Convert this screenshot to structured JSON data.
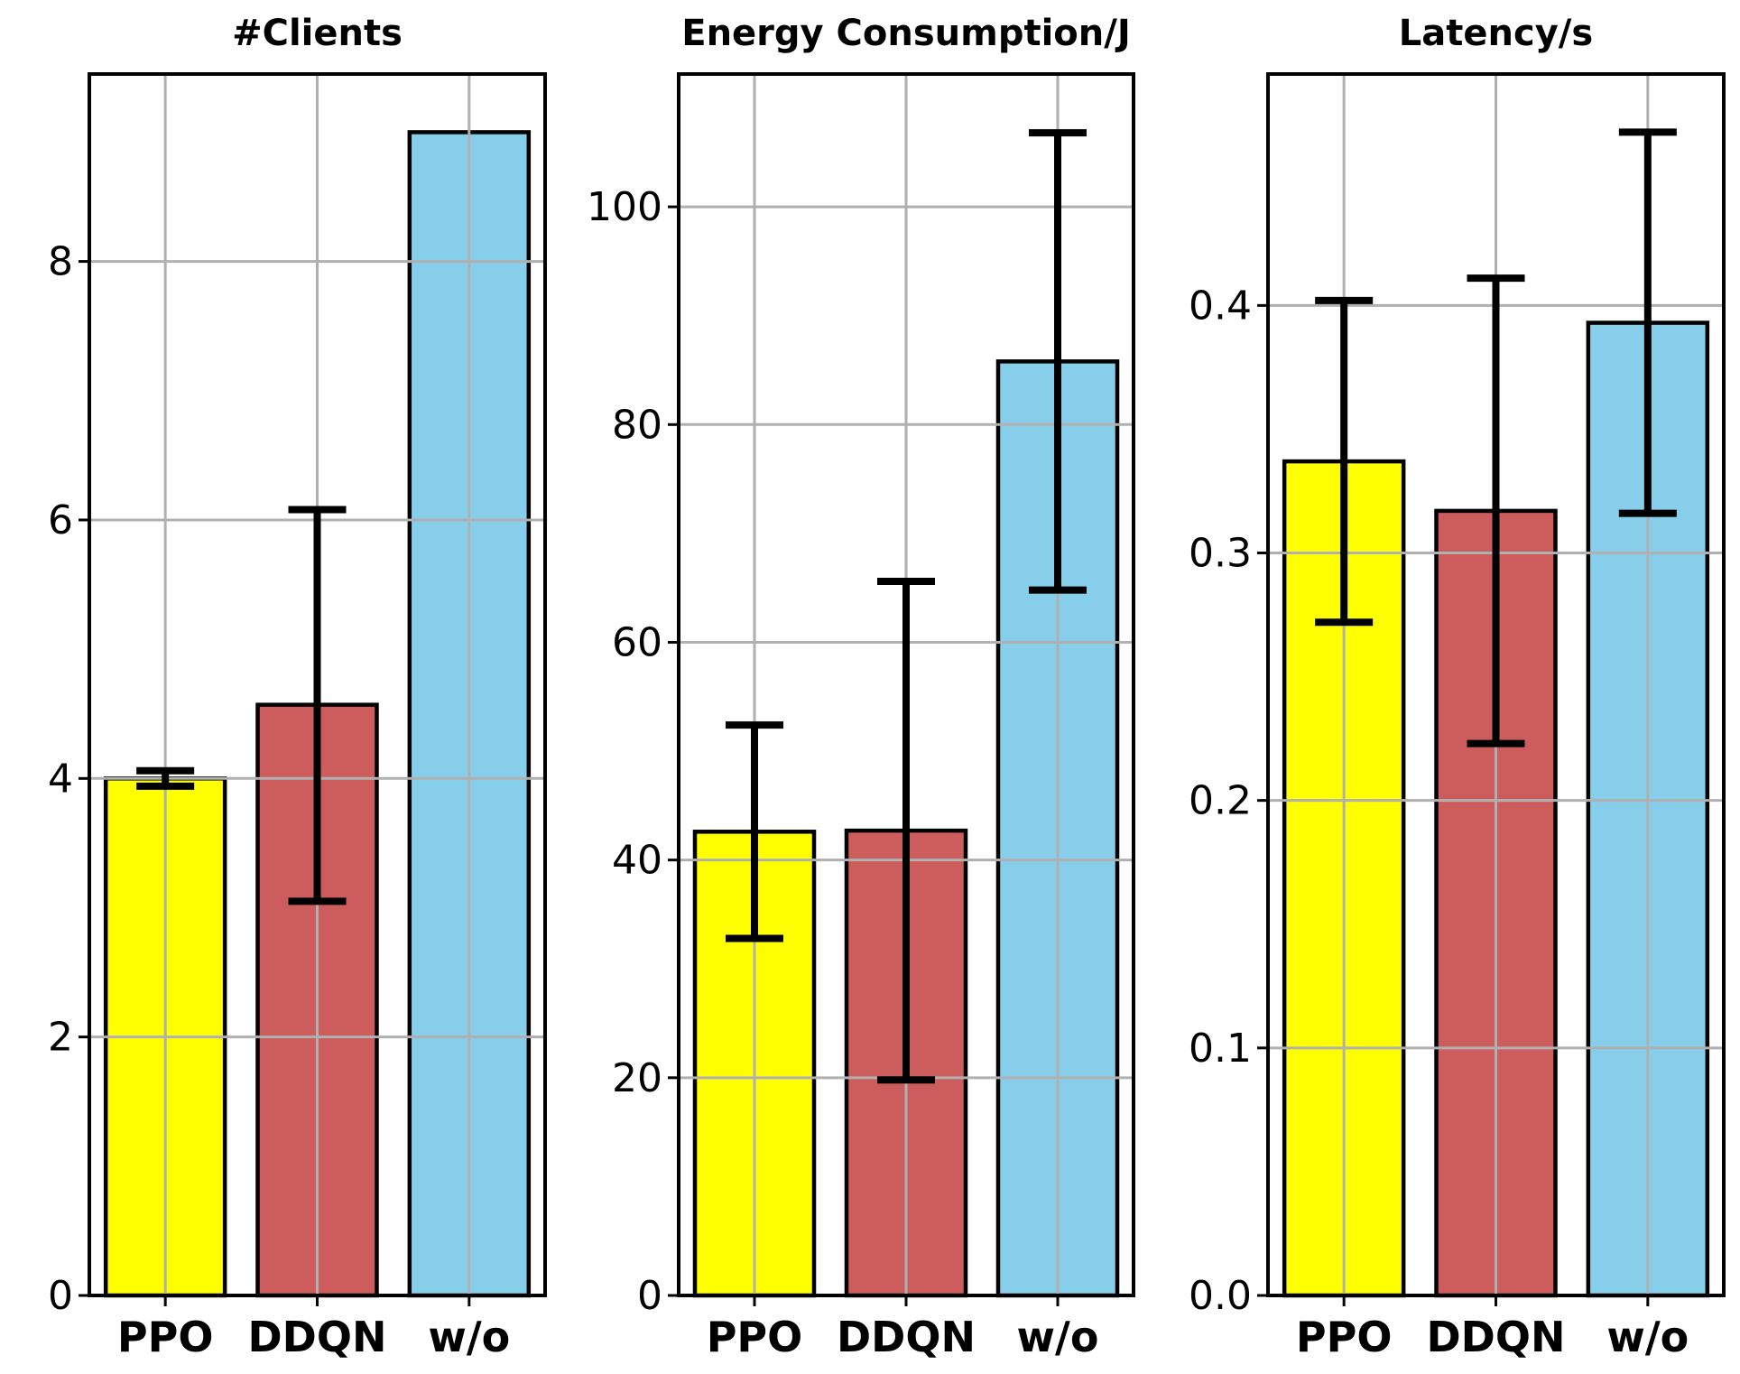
{
  "chart_data": [
    {
      "type": "bar",
      "title": "#Clients",
      "categories": [
        "PPO",
        "DDQN",
        "w/o"
      ],
      "values": [
        4.0,
        4.57,
        9.0
      ],
      "error_low": [
        3.94,
        3.05,
        9.0
      ],
      "error_high": [
        4.06,
        6.08,
        9.0
      ],
      "colors": [
        "#ffff00",
        "#cd5c5c",
        "#87ceeb"
      ],
      "ylim": [
        0,
        9.45
      ],
      "yticks": [
        0,
        2,
        4,
        6,
        8
      ],
      "grid": true
    },
    {
      "type": "bar",
      "title": "Energy Consumption/J",
      "categories": [
        "PPO",
        "DDQN",
        "w/o"
      ],
      "values": [
        42.6,
        42.7,
        85.8
      ],
      "error_low": [
        32.8,
        19.8,
        64.8
      ],
      "error_high": [
        52.4,
        65.6,
        106.8
      ],
      "colors": [
        "#ffff00",
        "#cd5c5c",
        "#87ceeb"
      ],
      "ylim": [
        0,
        112.2
      ],
      "yticks": [
        0,
        20,
        40,
        60,
        80,
        100
      ],
      "grid": true
    },
    {
      "type": "bar",
      "title": "Latency/s",
      "categories": [
        "PPO",
        "DDQN",
        "w/o"
      ],
      "values": [
        0.337,
        0.317,
        0.393
      ],
      "error_low": [
        0.272,
        0.223,
        0.316
      ],
      "error_high": [
        0.402,
        0.411,
        0.47
      ],
      "colors": [
        "#ffff00",
        "#cd5c5c",
        "#87ceeb"
      ],
      "ylim": [
        0,
        0.4935
      ],
      "yticks": [
        "0.0",
        "0.1",
        "0.2",
        "0.3",
        "0.4"
      ],
      "grid": true
    }
  ]
}
